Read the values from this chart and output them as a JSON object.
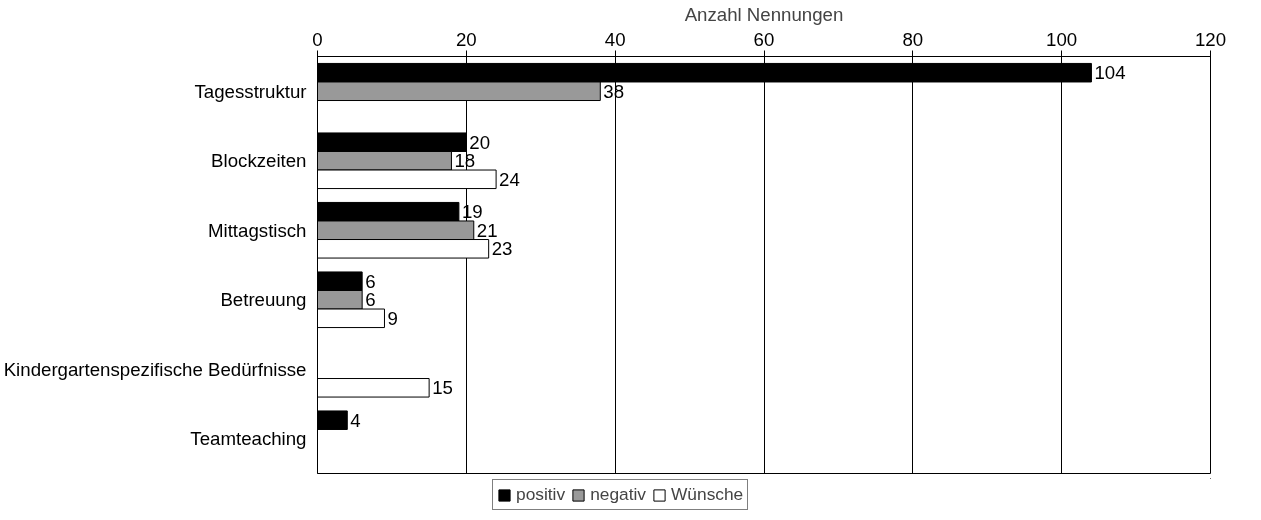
{
  "chart_data": {
    "type": "bar",
    "orientation": "horizontal",
    "xlabel": "Anzahl Nennungen",
    "categories": [
      "Tagesstruktur",
      "Blockzeiten",
      "Mittagstisch",
      "Betreuung",
      "Kindergartenspezifische Bedürfnisse",
      "Teamteaching"
    ],
    "series": [
      {
        "name": "positiv",
        "color": "#000000",
        "values": [
          104,
          20,
          19,
          6,
          null,
          4
        ]
      },
      {
        "name": "negativ",
        "color": "#999999",
        "values": [
          38,
          18,
          21,
          6,
          null,
          null
        ]
      },
      {
        "name": "Wünsche",
        "color": "#ffffff",
        "values": [
          null,
          24,
          23,
          9,
          15,
          null
        ]
      }
    ],
    "xlim": [
      0,
      120
    ],
    "xticks": [
      0,
      20,
      40,
      60,
      80,
      100,
      120
    ],
    "grid": "x",
    "legend": "bottom",
    "data_labels": true
  }
}
